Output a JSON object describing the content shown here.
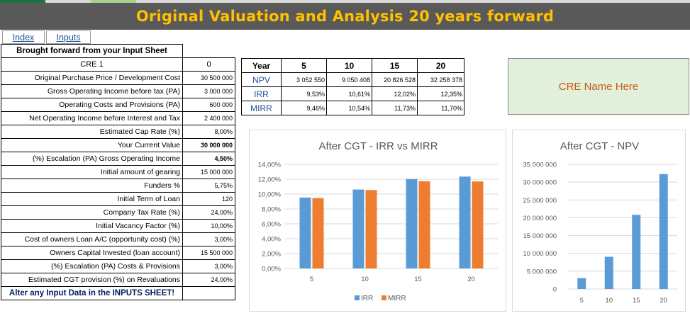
{
  "title": "Original Valuation and Analysis 20 years forward",
  "nav": {
    "index_label": "Index",
    "inputs_label": "Inputs"
  },
  "left_table": {
    "header": "Brought forward from your Input Sheet",
    "name_label": "CRE 1",
    "name_value": "0",
    "rows": [
      {
        "label": "Original Purchase Price / Development Cost",
        "value": "30 500 000"
      },
      {
        "label": "Gross Operating Income before tax (PA)",
        "value": "3 000 000"
      },
      {
        "label": "Operating Costs and Provisions (PA)",
        "value": "600 000"
      },
      {
        "label": "Net Operating Income before Interest and Tax",
        "value": "2 400 000"
      },
      {
        "label": "Estimated Cap Rate (%)",
        "value": "8,00%"
      },
      {
        "label": "Your Current Value",
        "value": "30 000 000"
      },
      {
        "label": "(%) Escalation (PA) Gross Operating Income",
        "value": "4,50%"
      },
      {
        "label": "Initial amount of gearing",
        "value": "15 000 000"
      },
      {
        "label": "Funders %",
        "value": "5,75%"
      },
      {
        "label": "Initial Term of Loan",
        "value": "120"
      },
      {
        "label": "Company Tax Rate (%)",
        "value": "24,00%"
      },
      {
        "label": "Initial Vacancy Factor (%)",
        "value": "10,00%"
      },
      {
        "label": "Cost of owners Loan A/C (opportunity cost) (%)",
        "value": "3,00%"
      },
      {
        "label": "Owners Capital Invested (loan account)",
        "value": "15 500 000"
      },
      {
        "label": "(%) Escalation (PA) Costs & Provisions",
        "value": "3,00%"
      },
      {
        "label": "Estimated CGT provision (%) on Revaluations",
        "value": "24,00%"
      }
    ],
    "footer": "Alter any Input Data in the INPUTS SHEET!"
  },
  "year_table": {
    "year_label": "Year",
    "years": [
      "5",
      "10",
      "15",
      "20"
    ],
    "rows": [
      {
        "label": "NPV",
        "values": [
          "3 052 550",
          "9 050 408",
          "20 826 528",
          "32 258 378"
        ]
      },
      {
        "label": "IRR",
        "values": [
          "9,53%",
          "10,61%",
          "12,02%",
          "12,35%"
        ]
      },
      {
        "label": "MIRR",
        "values": [
          "9,46%",
          "10,54%",
          "11,73%",
          "11,70%"
        ]
      }
    ]
  },
  "cre_name": "CRE Name Here",
  "colors": {
    "title_bg": "#595959",
    "title_text": "#ffc000",
    "irr": "#5b9bd5",
    "mirr": "#ed7d31",
    "cre_bg": "#e2efda",
    "cre_text": "#c65911",
    "link": "#1f4e9b"
  },
  "chart_data": [
    {
      "type": "bar",
      "title": "After CGT - IRR vs MIRR",
      "categories": [
        "5",
        "10",
        "15",
        "20"
      ],
      "series": [
        {
          "name": "IRR",
          "values": [
            9.53,
            10.61,
            12.02,
            12.35
          ]
        },
        {
          "name": "MIRR",
          "values": [
            9.46,
            10.54,
            11.73,
            11.7
          ]
        }
      ],
      "ylim": [
        0,
        14
      ],
      "yticks": [
        "0,00%",
        "2,00%",
        "4,00%",
        "6,00%",
        "8,00%",
        "10,00%",
        "12,00%",
        "14,00%"
      ],
      "xlabel": "",
      "ylabel": "",
      "grid": true,
      "legend": "bottom"
    },
    {
      "type": "bar",
      "title": "After CGT - NPV",
      "categories": [
        "5",
        "10",
        "15",
        "20"
      ],
      "series": [
        {
          "values": [
            3052550,
            9050408,
            20826528,
            32258378
          ]
        }
      ],
      "ylim": [
        0,
        35000000
      ],
      "yticks": [
        "0",
        "5 000 000",
        "10 000 000",
        "15 000 000",
        "20 000 000",
        "25 000 000",
        "30 000 000",
        "35 000 000"
      ],
      "xlabel": "",
      "ylabel": "",
      "grid": true,
      "legend": "none"
    }
  ]
}
